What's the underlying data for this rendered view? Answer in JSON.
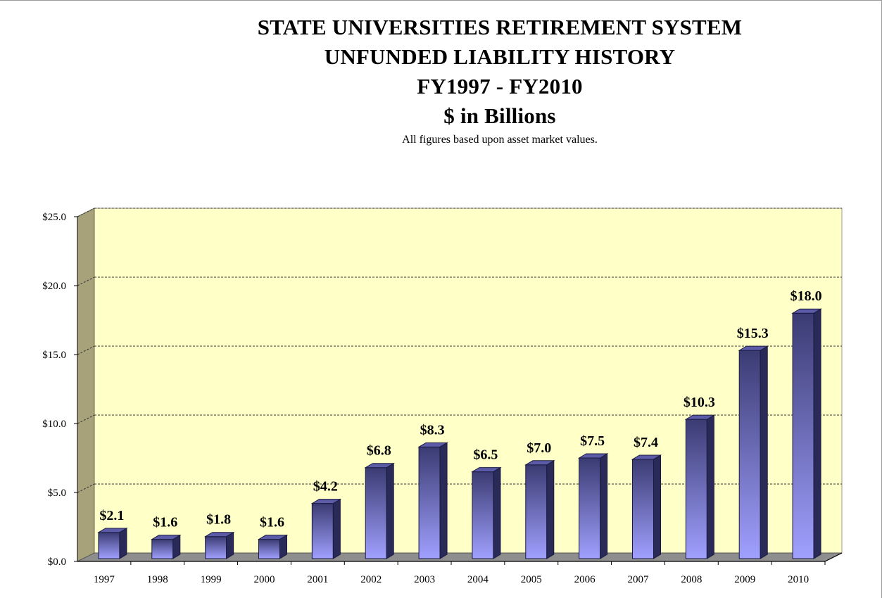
{
  "chart_data": {
    "type": "bar",
    "title": [
      "STATE UNIVERSITIES RETIREMENT SYSTEM",
      "UNFUNDED LIABILITY HISTORY",
      "FY1997 - FY2010",
      "$ in Billions"
    ],
    "subtitle": "All figures based upon asset market values.",
    "categories": [
      "1997",
      "1998",
      "1999",
      "2000",
      "2001",
      "2002",
      "2003",
      "2004",
      "2005",
      "2006",
      "2007",
      "2008",
      "2009",
      "2010"
    ],
    "values": [
      2.1,
      1.6,
      1.8,
      1.6,
      4.2,
      6.8,
      8.3,
      6.5,
      7.0,
      7.5,
      7.4,
      10.3,
      15.3,
      18.0
    ],
    "data_labels": [
      "$2.1",
      "$1.6",
      "$1.8",
      "$1.6",
      "$4.2",
      "$6.8",
      "$8.3",
      "$6.5",
      "$7.0",
      "$7.5",
      "$7.4",
      "$10.3",
      "$15.3",
      "$18.0"
    ],
    "y_ticks": [
      "$0.0",
      "$5.0",
      "$10.0",
      "$15.0",
      "$20.0",
      "$25.0"
    ],
    "y_tick_values": [
      0,
      5,
      10,
      15,
      20,
      25
    ],
    "ylim": [
      0,
      25
    ],
    "grid": true,
    "three_d": true,
    "colors": {
      "plot_background": "#ffffc8",
      "side_wall": "#a7a27a",
      "floor": "#8e8e8e",
      "bar_top": "#3b3b73",
      "bar_bottom": "#a0a0ff",
      "bar_side": "#2a2a58",
      "bar_cap": "#5b5ba8"
    }
  }
}
